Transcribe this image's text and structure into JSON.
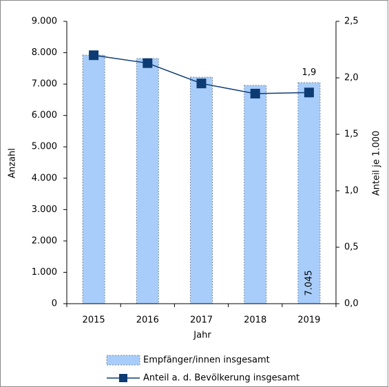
{
  "chart_data": {
    "type": "combo",
    "x_label": "Jahr",
    "y_label": "Anzahl",
    "y2_label": "Anteil je 1.000",
    "categories": [
      "2015",
      "2016",
      "2017",
      "2018",
      "2019"
    ],
    "series": [
      {
        "name": "Empfänger/innen insgesamt",
        "type": "bar",
        "color": "#a9cdfa",
        "values": [
          7924,
          7814,
          7221,
          6958,
          7045
        ],
        "value_labels": [
          null,
          null,
          null,
          null,
          "7.045"
        ]
      },
      {
        "name": "Anteil a. d. Bevölkerung insgesamt",
        "type": "line",
        "axis": "y2",
        "color": "#0d3b73",
        "values": [
          2.2,
          2.13,
          1.95,
          1.86,
          1.87
        ],
        "value_labels": [
          null,
          null,
          null,
          null,
          "1,9"
        ]
      }
    ],
    "ylim": [
      0,
      9000
    ],
    "yticks": [
      0,
      {
        "value": 1000,
        "label": "1.000"
      },
      {
        "value": 2000,
        "label": "2.000"
      },
      {
        "value": 3000,
        "label": "3.000"
      },
      {
        "value": 4000,
        "label": "4.000"
      },
      {
        "value": 5000,
        "label": "5.000"
      },
      {
        "value": 6000,
        "label": "6.000"
      },
      {
        "value": 7000,
        "label": "7.000"
      },
      {
        "value": 8000,
        "label": "8.000"
      },
      {
        "value": 9000,
        "label": "9.000"
      }
    ],
    "y2lim": [
      0,
      2.5
    ],
    "y2ticks": [
      {
        "value": 0,
        "label": "0,0"
      },
      {
        "value": 0.5,
        "label": "0,5"
      },
      {
        "value": 1,
        "label": "1,0"
      },
      {
        "value": 1.5,
        "label": "1,5"
      },
      {
        "value": 2,
        "label": "2,0"
      },
      {
        "value": 2.5,
        "label": "2,5"
      }
    ],
    "grid": false
  }
}
